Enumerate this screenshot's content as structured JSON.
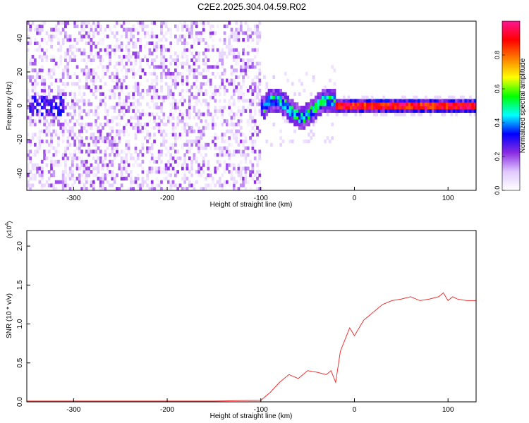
{
  "page": {
    "title": "C2E2.2025.304.04.59.R02"
  },
  "chart_data": [
    {
      "type": "heatmap",
      "title": "",
      "xlabel": "Height of straight line (km)",
      "ylabel": "Frequency (Hz)",
      "xlim": [
        -350,
        130
      ],
      "ylim": [
        -50,
        50
      ],
      "xticks": [
        -300,
        -200,
        -100,
        0,
        100
      ],
      "yticks": [
        -40,
        -20,
        0,
        20,
        40
      ],
      "grid": false,
      "regions": [
        {
          "x": [
            -350,
            -100
          ],
          "description": "broadband noise, amplitude ~0.0-0.25 across all frequencies"
        },
        {
          "x": [
            -100,
            -20
          ],
          "description": "wavering signal near 0 Hz, amplitude ~0.3-0.6"
        },
        {
          "x": [
            -20,
            130
          ],
          "description": "steady signal at 0 Hz, amplitude ~0.8-1.0"
        }
      ],
      "colorbar": {
        "label": "Normalized spectral amplitude",
        "range": [
          0,
          1
        ],
        "ticks": [
          "0.0",
          "0.2",
          "0.4",
          "0.6",
          "0.8"
        ],
        "colors": [
          "#ffffff",
          "#e0c8ff",
          "#8a2be2",
          "#0000ff",
          "#00ffff",
          "#00ff00",
          "#ffff00",
          "#ff7f00",
          "#ff0000",
          "#ff1493"
        ]
      }
    },
    {
      "type": "line",
      "title": "",
      "xlabel": "Height of straight line (km)",
      "ylabel": "SNR (10 * v/v)",
      "y_multiplier": "(x10",
      "y_multiplier_exp": "4",
      "y_multiplier_close": ")",
      "xlim": [
        -350,
        130
      ],
      "ylim": [
        0,
        2.2
      ],
      "xticks": [
        -300,
        -200,
        -100,
        0,
        100
      ],
      "yticks": [
        "0.0",
        "0.5",
        "1.0",
        "1.5",
        "2.0"
      ],
      "series": [
        {
          "color": "#ee3333",
          "x": [
            -350,
            -300,
            -250,
            -200,
            -150,
            -100,
            -90,
            -80,
            -70,
            -60,
            -50,
            -40,
            -30,
            -25,
            -20,
            -15,
            -10,
            -5,
            0,
            10,
            20,
            30,
            40,
            50,
            60,
            70,
            80,
            90,
            95,
            100,
            105,
            110,
            120,
            130
          ],
          "y": [
            0.01,
            0.01,
            0.01,
            0.01,
            0.01,
            0.02,
            0.12,
            0.25,
            0.35,
            0.3,
            0.4,
            0.38,
            0.35,
            0.4,
            0.25,
            0.65,
            0.8,
            0.95,
            0.85,
            1.05,
            1.15,
            1.25,
            1.3,
            1.32,
            1.35,
            1.3,
            1.32,
            1.35,
            1.4,
            1.3,
            1.35,
            1.32,
            1.3,
            1.3
          ]
        }
      ]
    }
  ]
}
